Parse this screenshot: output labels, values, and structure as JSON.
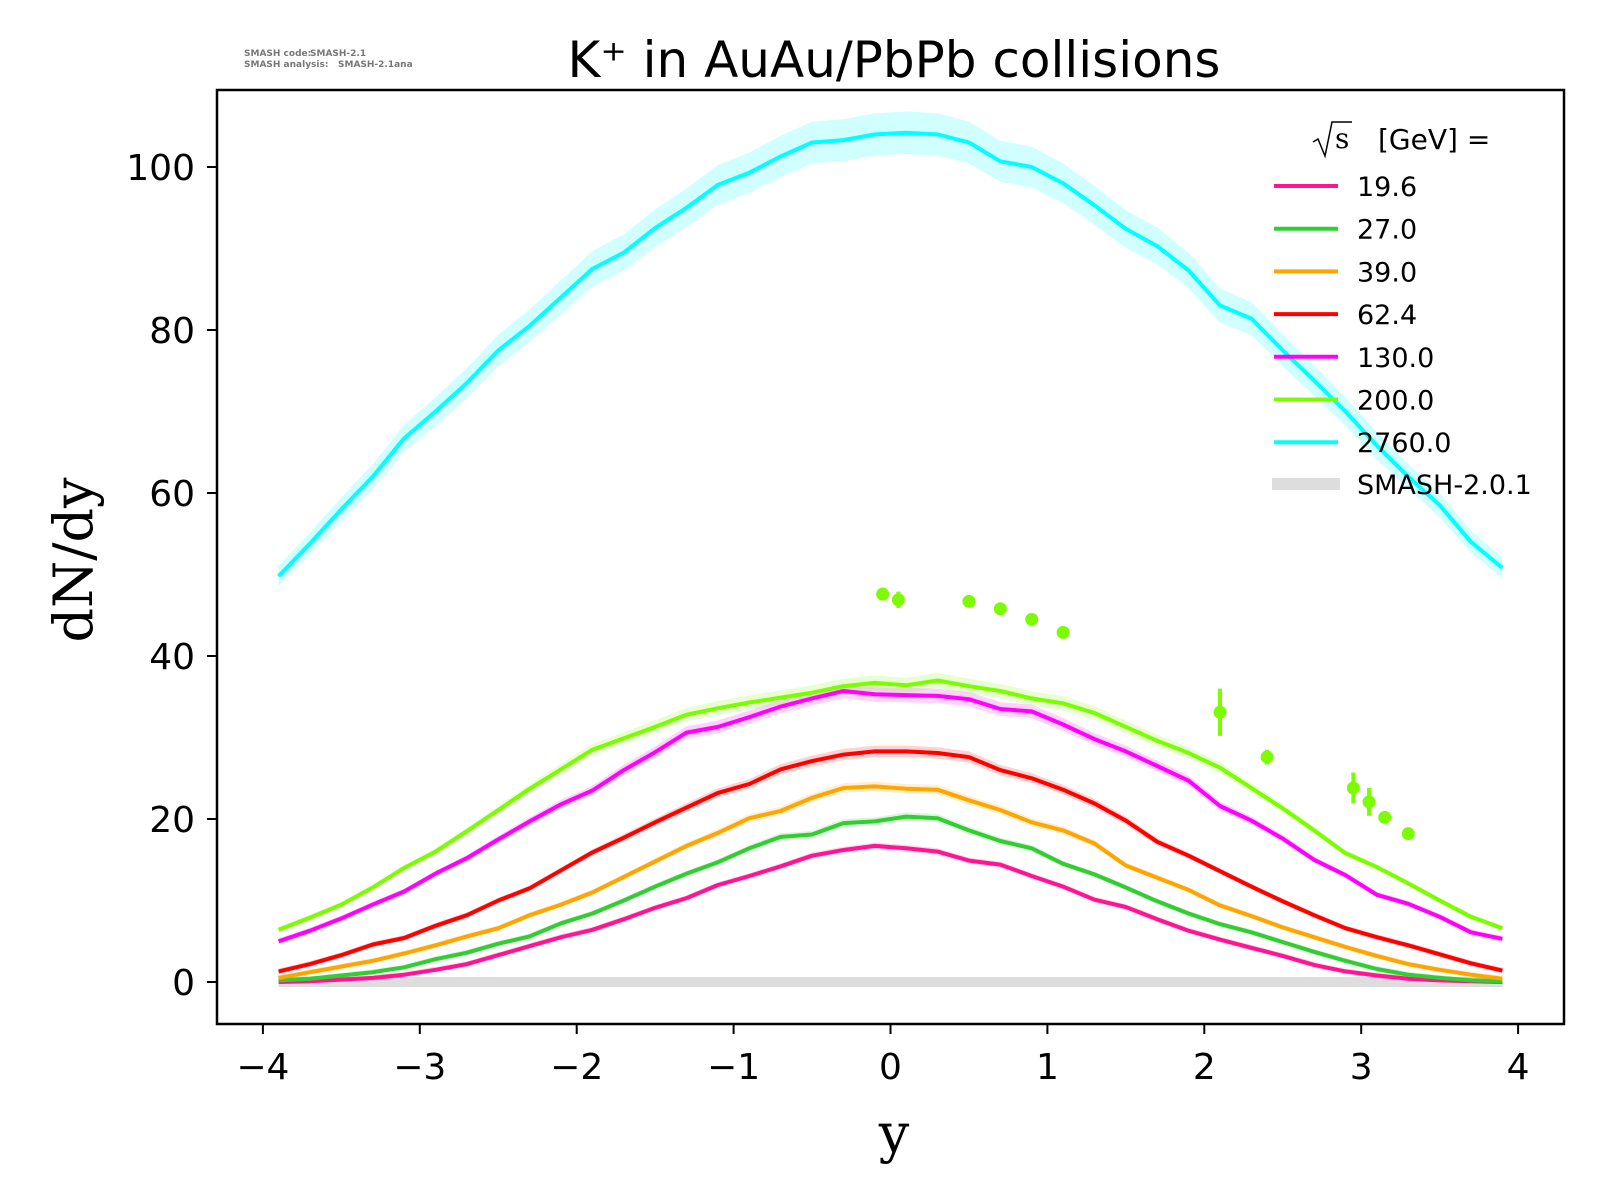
{
  "meta": {
    "code_label": "SMASH code:",
    "code_value": "SMASH-2.1",
    "analysis_label": "SMASH analysis:",
    "analysis_value": "SMASH-2.1ana"
  },
  "chart_data": {
    "type": "line",
    "title": "K⁺ in AuAu/PbPb collisions",
    "xlabel": "y",
    "ylabel": "dN/dy",
    "xlim": [
      -4.3,
      4.3
    ],
    "ylim": [
      -5,
      109
    ],
    "xticks": [
      -4,
      -3,
      -2,
      -1,
      0,
      1,
      2,
      3,
      4
    ],
    "xtick_labels": [
      "−4",
      "−3",
      "−2",
      "−1",
      "0",
      "1",
      "2",
      "3",
      "4"
    ],
    "yticks": [
      0,
      20,
      40,
      60,
      80,
      100
    ],
    "ytick_labels": [
      "0",
      "20",
      "40",
      "60",
      "80",
      "100"
    ],
    "grid": false,
    "legend": {
      "placement": "top-right",
      "title_prefix": "s",
      "title_suffix": "[GeV] =",
      "band_label": "SMASH-2.0.1",
      "band_color": "#dddddd"
    },
    "x": [
      -3.9,
      -3.7,
      -3.5,
      -3.3,
      -3.1,
      -2.9,
      -2.7,
      -2.5,
      -2.3,
      -2.1,
      -1.9,
      -1.7,
      -1.5,
      -1.3,
      -1.1,
      -0.9,
      -0.7,
      -0.5,
      -0.3,
      -0.1,
      0.1,
      0.3,
      0.5,
      0.7,
      0.9,
      1.1,
      1.3,
      1.5,
      1.7,
      1.9,
      2.1,
      2.3,
      2.5,
      2.7,
      2.9,
      3.1,
      3.3,
      3.5,
      3.7,
      3.9
    ],
    "series": [
      {
        "name": "19.6",
        "color": "#ff1493",
        "values": [
          0.0,
          0.1,
          0.3,
          0.5,
          0.9,
          1.5,
          2.2,
          3.3,
          4.4,
          5.5,
          6.4,
          7.7,
          9.1,
          10.3,
          11.9,
          13.0,
          14.2,
          15.5,
          16.2,
          16.7,
          16.4,
          16.0,
          14.9,
          14.4,
          13.0,
          11.7,
          10.1,
          9.2,
          7.7,
          6.3,
          5.2,
          4.2,
          3.2,
          2.1,
          1.3,
          0.8,
          0.4,
          0.2,
          0.1,
          0.0
        ]
      },
      {
        "name": "27.0",
        "color": "#32cd32",
        "values": [
          0.2,
          0.4,
          0.8,
          1.2,
          1.8,
          2.8,
          3.6,
          4.7,
          5.6,
          7.2,
          8.4,
          10.0,
          11.7,
          13.3,
          14.7,
          16.4,
          17.8,
          18.1,
          19.5,
          19.7,
          20.3,
          20.1,
          18.6,
          17.3,
          16.4,
          14.5,
          13.2,
          11.6,
          9.9,
          8.4,
          7.1,
          6.1,
          4.9,
          3.7,
          2.6,
          1.6,
          0.9,
          0.5,
          0.2,
          0.1
        ]
      },
      {
        "name": "39.0",
        "color": "#ffa500",
        "values": [
          0.5,
          1.2,
          1.9,
          2.6,
          3.5,
          4.5,
          5.6,
          6.6,
          8.2,
          9.5,
          11.0,
          12.9,
          14.8,
          16.7,
          18.3,
          20.1,
          21.0,
          22.6,
          23.8,
          24.0,
          23.7,
          23.6,
          22.3,
          21.1,
          19.6,
          18.6,
          17.0,
          14.3,
          12.8,
          11.3,
          9.4,
          8.1,
          6.7,
          5.5,
          4.3,
          3.2,
          2.2,
          1.5,
          0.9,
          0.4
        ]
      },
      {
        "name": "62.4",
        "color": "#ff0000",
        "values": [
          1.3,
          2.2,
          3.3,
          4.6,
          5.4,
          6.9,
          8.2,
          10.0,
          11.5,
          13.7,
          15.9,
          17.7,
          19.6,
          21.4,
          23.2,
          24.3,
          26.1,
          27.1,
          27.9,
          28.3,
          28.3,
          28.1,
          27.6,
          26.0,
          25.0,
          23.6,
          21.9,
          19.8,
          17.2,
          15.5,
          13.6,
          11.7,
          9.9,
          8.2,
          6.6,
          5.5,
          4.5,
          3.4,
          2.3,
          1.4
        ]
      },
      {
        "name": "130.0",
        "color": "#ff00ff",
        "values": [
          5.0,
          6.3,
          7.8,
          9.5,
          11.1,
          13.3,
          15.2,
          17.5,
          19.7,
          21.8,
          23.5,
          26.0,
          28.2,
          30.6,
          31.3,
          32.5,
          33.8,
          34.8,
          35.7,
          35.3,
          35.2,
          35.1,
          34.7,
          33.5,
          33.2,
          31.6,
          29.8,
          28.3,
          26.5,
          24.7,
          21.6,
          19.8,
          17.6,
          15.0,
          13.1,
          10.7,
          9.6,
          8.0,
          6.1,
          5.3
        ]
      },
      {
        "name": "200.0",
        "color": "#7cfc00",
        "values": [
          6.4,
          7.9,
          9.5,
          11.6,
          14.0,
          16.0,
          18.5,
          21.1,
          23.7,
          26.1,
          28.5,
          29.9,
          31.3,
          32.8,
          33.6,
          34.3,
          34.9,
          35.5,
          36.3,
          36.7,
          36.4,
          37.0,
          36.3,
          35.7,
          34.8,
          34.2,
          33.0,
          31.3,
          29.6,
          28.1,
          26.3,
          23.8,
          21.3,
          18.6,
          15.8,
          14.1,
          12.1,
          10.0,
          8.0,
          6.6
        ]
      },
      {
        "name": "2760.0",
        "color": "#00ffff",
        "values": [
          49.8,
          53.8,
          58.0,
          62.0,
          66.7,
          70.0,
          73.5,
          77.5,
          80.5,
          84.0,
          87.5,
          89.5,
          92.5,
          95.0,
          97.8,
          99.3,
          101.3,
          103.0,
          103.3,
          104.0,
          104.2,
          104.0,
          103.0,
          100.7,
          100.0,
          98.0,
          95.3,
          92.4,
          90.3,
          87.3,
          83.0,
          81.4,
          77.5,
          73.8,
          70.0,
          65.8,
          62.0,
          58.5,
          54.0,
          50.8
        ]
      }
    ],
    "experimental_points": {
      "color": "#7cfc00",
      "x": [
        -0.05,
        0.05,
        0.5,
        0.7,
        0.9,
        1.1,
        2.1,
        2.4,
        2.95,
        3.05,
        3.15,
        3.3
      ],
      "y": [
        47.6,
        46.9,
        46.7,
        45.8,
        44.5,
        42.9,
        33.1,
        27.6,
        23.8,
        22.1,
        20.2,
        18.2
      ],
      "yerr": [
        0.8,
        1.0,
        0.3,
        0.3,
        0.3,
        0.3,
        2.9,
        0.9,
        1.9,
        1.7,
        0.6,
        0.3
      ]
    }
  }
}
